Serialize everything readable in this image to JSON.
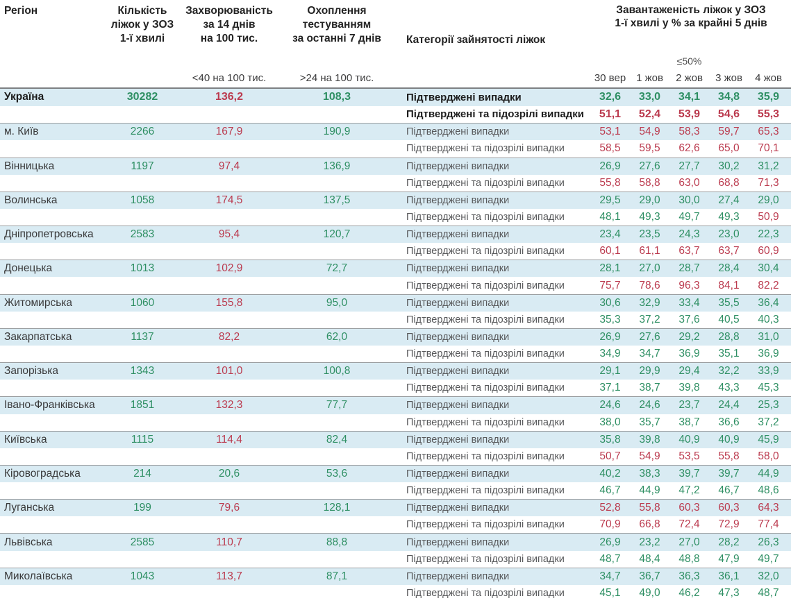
{
  "header": {
    "col_region": "Регіон",
    "col_beds_lines": [
      "Кількість",
      "ліжок у ЗОЗ",
      "1-ї хвилі"
    ],
    "col_incidence_lines": [
      "Захворюваність",
      "за 14 днів",
      "на 100 тис."
    ],
    "col_testing_lines": [
      "Охоплення",
      "тестуванням",
      "за останні 7 днів"
    ],
    "col_categories": "Категорії зайнятості ліжок",
    "col_occupancy_lines": [
      "Завантаженість ліжок у ЗОЗ",
      "1-ї хвилі у % за крайні 5 днів"
    ],
    "incidence_note": "<40 на 100 тис.",
    "testing_note": ">24 на 100 тис.",
    "occupancy_note": "≤50%",
    "dates": [
      "30 вер",
      "1 жов",
      "2 жов",
      "3 жов",
      "4 жов"
    ]
  },
  "labels": {
    "confirmed": "Підтверджені випадки",
    "confirmed_suspected": "Підтверджені та підозрілі випадки"
  },
  "thresholds": {
    "incidence_green_below": 40,
    "testing_green_above": 24,
    "occupancy_green_at_or_below": 50
  },
  "colors": {
    "green": "#2e8f63",
    "red": "#bb3a4e",
    "row_band": "#d9ebf3"
  },
  "chart_data": {
    "type": "table",
    "title": "Завантаженість ліжок у ЗОЗ 1-ї хвилі у % за крайні 5 днів",
    "date_columns": [
      "30 вер",
      "1 жов",
      "2 жов",
      "3 жов",
      "4 жов"
    ],
    "regions": [
      {
        "name": "Україна",
        "emphasis": true,
        "beds": "30282",
        "incidence": "136,2",
        "testing": "108,3",
        "confirmed": [
          "32,6",
          "33,0",
          "34,1",
          "34,8",
          "35,9"
        ],
        "confirmed_suspected": [
          "51,1",
          "52,4",
          "53,9",
          "54,6",
          "55,3"
        ]
      },
      {
        "name": "м. Київ",
        "emphasis": false,
        "beds": "2266",
        "incidence": "167,9",
        "testing": "190,9",
        "confirmed": [
          "53,1",
          "54,9",
          "58,3",
          "59,7",
          "65,3"
        ],
        "confirmed_suspected": [
          "58,5",
          "59,5",
          "62,6",
          "65,0",
          "70,1"
        ]
      },
      {
        "name": "Вінницька",
        "emphasis": false,
        "beds": "1197",
        "incidence": "97,4",
        "testing": "136,9",
        "confirmed": [
          "26,9",
          "27,6",
          "27,7",
          "30,2",
          "31,2"
        ],
        "confirmed_suspected": [
          "55,8",
          "58,8",
          "63,0",
          "68,8",
          "71,3"
        ]
      },
      {
        "name": "Волинська",
        "emphasis": false,
        "beds": "1058",
        "incidence": "174,5",
        "testing": "137,5",
        "confirmed": [
          "29,5",
          "29,0",
          "30,0",
          "27,4",
          "29,0"
        ],
        "confirmed_suspected": [
          "48,1",
          "49,3",
          "49,7",
          "49,3",
          "50,9"
        ]
      },
      {
        "name": "Дніпропетровська",
        "emphasis": false,
        "beds": "2583",
        "incidence": "95,4",
        "testing": "120,7",
        "confirmed": [
          "23,4",
          "23,5",
          "24,3",
          "23,0",
          "22,3"
        ],
        "confirmed_suspected": [
          "60,1",
          "61,1",
          "63,7",
          "63,7",
          "60,9"
        ]
      },
      {
        "name": "Донецька",
        "emphasis": false,
        "beds": "1013",
        "incidence": "102,9",
        "testing": "72,7",
        "confirmed": [
          "28,1",
          "27,0",
          "28,7",
          "28,4",
          "30,4"
        ],
        "confirmed_suspected": [
          "75,7",
          "78,6",
          "96,3",
          "84,1",
          "82,2"
        ]
      },
      {
        "name": "Житомирська",
        "emphasis": false,
        "beds": "1060",
        "incidence": "155,8",
        "testing": "95,0",
        "confirmed": [
          "30,6",
          "32,9",
          "33,4",
          "35,5",
          "36,4"
        ],
        "confirmed_suspected": [
          "35,3",
          "37,2",
          "37,6",
          "40,5",
          "40,3"
        ]
      },
      {
        "name": "Закарпатська",
        "emphasis": false,
        "beds": "1137",
        "incidence": "82,2",
        "testing": "62,0",
        "confirmed": [
          "26,9",
          "27,6",
          "29,2",
          "28,8",
          "31,0"
        ],
        "confirmed_suspected": [
          "34,9",
          "34,7",
          "36,9",
          "35,1",
          "36,9"
        ]
      },
      {
        "name": "Запорізька",
        "emphasis": false,
        "beds": "1343",
        "incidence": "101,0",
        "testing": "100,8",
        "confirmed": [
          "29,1",
          "29,9",
          "29,4",
          "32,2",
          "33,9"
        ],
        "confirmed_suspected": [
          "37,1",
          "38,7",
          "39,8",
          "43,3",
          "45,3"
        ]
      },
      {
        "name": "Івано-Франківська",
        "emphasis": false,
        "beds": "1851",
        "incidence": "132,3",
        "testing": "77,7",
        "confirmed": [
          "24,6",
          "24,6",
          "23,7",
          "24,4",
          "25,3"
        ],
        "confirmed_suspected": [
          "38,0",
          "35,7",
          "38,7",
          "36,6",
          "37,2"
        ]
      },
      {
        "name": "Київська",
        "emphasis": false,
        "beds": "1115",
        "incidence": "114,4",
        "testing": "82,4",
        "confirmed": [
          "35,8",
          "39,8",
          "40,9",
          "40,9",
          "45,9"
        ],
        "confirmed_suspected": [
          "50,7",
          "54,9",
          "53,5",
          "55,8",
          "58,0"
        ]
      },
      {
        "name": "Кіровоградська",
        "emphasis": false,
        "beds": "214",
        "incidence": "20,6",
        "testing": "53,6",
        "confirmed": [
          "40,2",
          "38,3",
          "39,7",
          "39,7",
          "44,9"
        ],
        "confirmed_suspected": [
          "46,7",
          "44,9",
          "47,2",
          "46,7",
          "48,6"
        ]
      },
      {
        "name": "Луганська",
        "emphasis": false,
        "beds": "199",
        "incidence": "79,6",
        "testing": "128,1",
        "confirmed": [
          "52,8",
          "55,8",
          "60,3",
          "60,3",
          "64,3"
        ],
        "confirmed_suspected": [
          "70,9",
          "66,8",
          "72,4",
          "72,9",
          "77,4"
        ]
      },
      {
        "name": "Львівська",
        "emphasis": false,
        "beds": "2585",
        "incidence": "110,7",
        "testing": "88,8",
        "confirmed": [
          "26,9",
          "23,2",
          "27,0",
          "28,2",
          "26,3"
        ],
        "confirmed_suspected": [
          "48,7",
          "48,4",
          "48,8",
          "47,9",
          "49,7"
        ]
      },
      {
        "name": "Миколаївська",
        "emphasis": false,
        "beds": "1043",
        "incidence": "113,7",
        "testing": "87,1",
        "confirmed": [
          "34,7",
          "36,7",
          "36,3",
          "36,1",
          "32,0"
        ],
        "confirmed_suspected": [
          "45,1",
          "49,0",
          "46,2",
          "47,3",
          "48,7"
        ]
      }
    ]
  }
}
